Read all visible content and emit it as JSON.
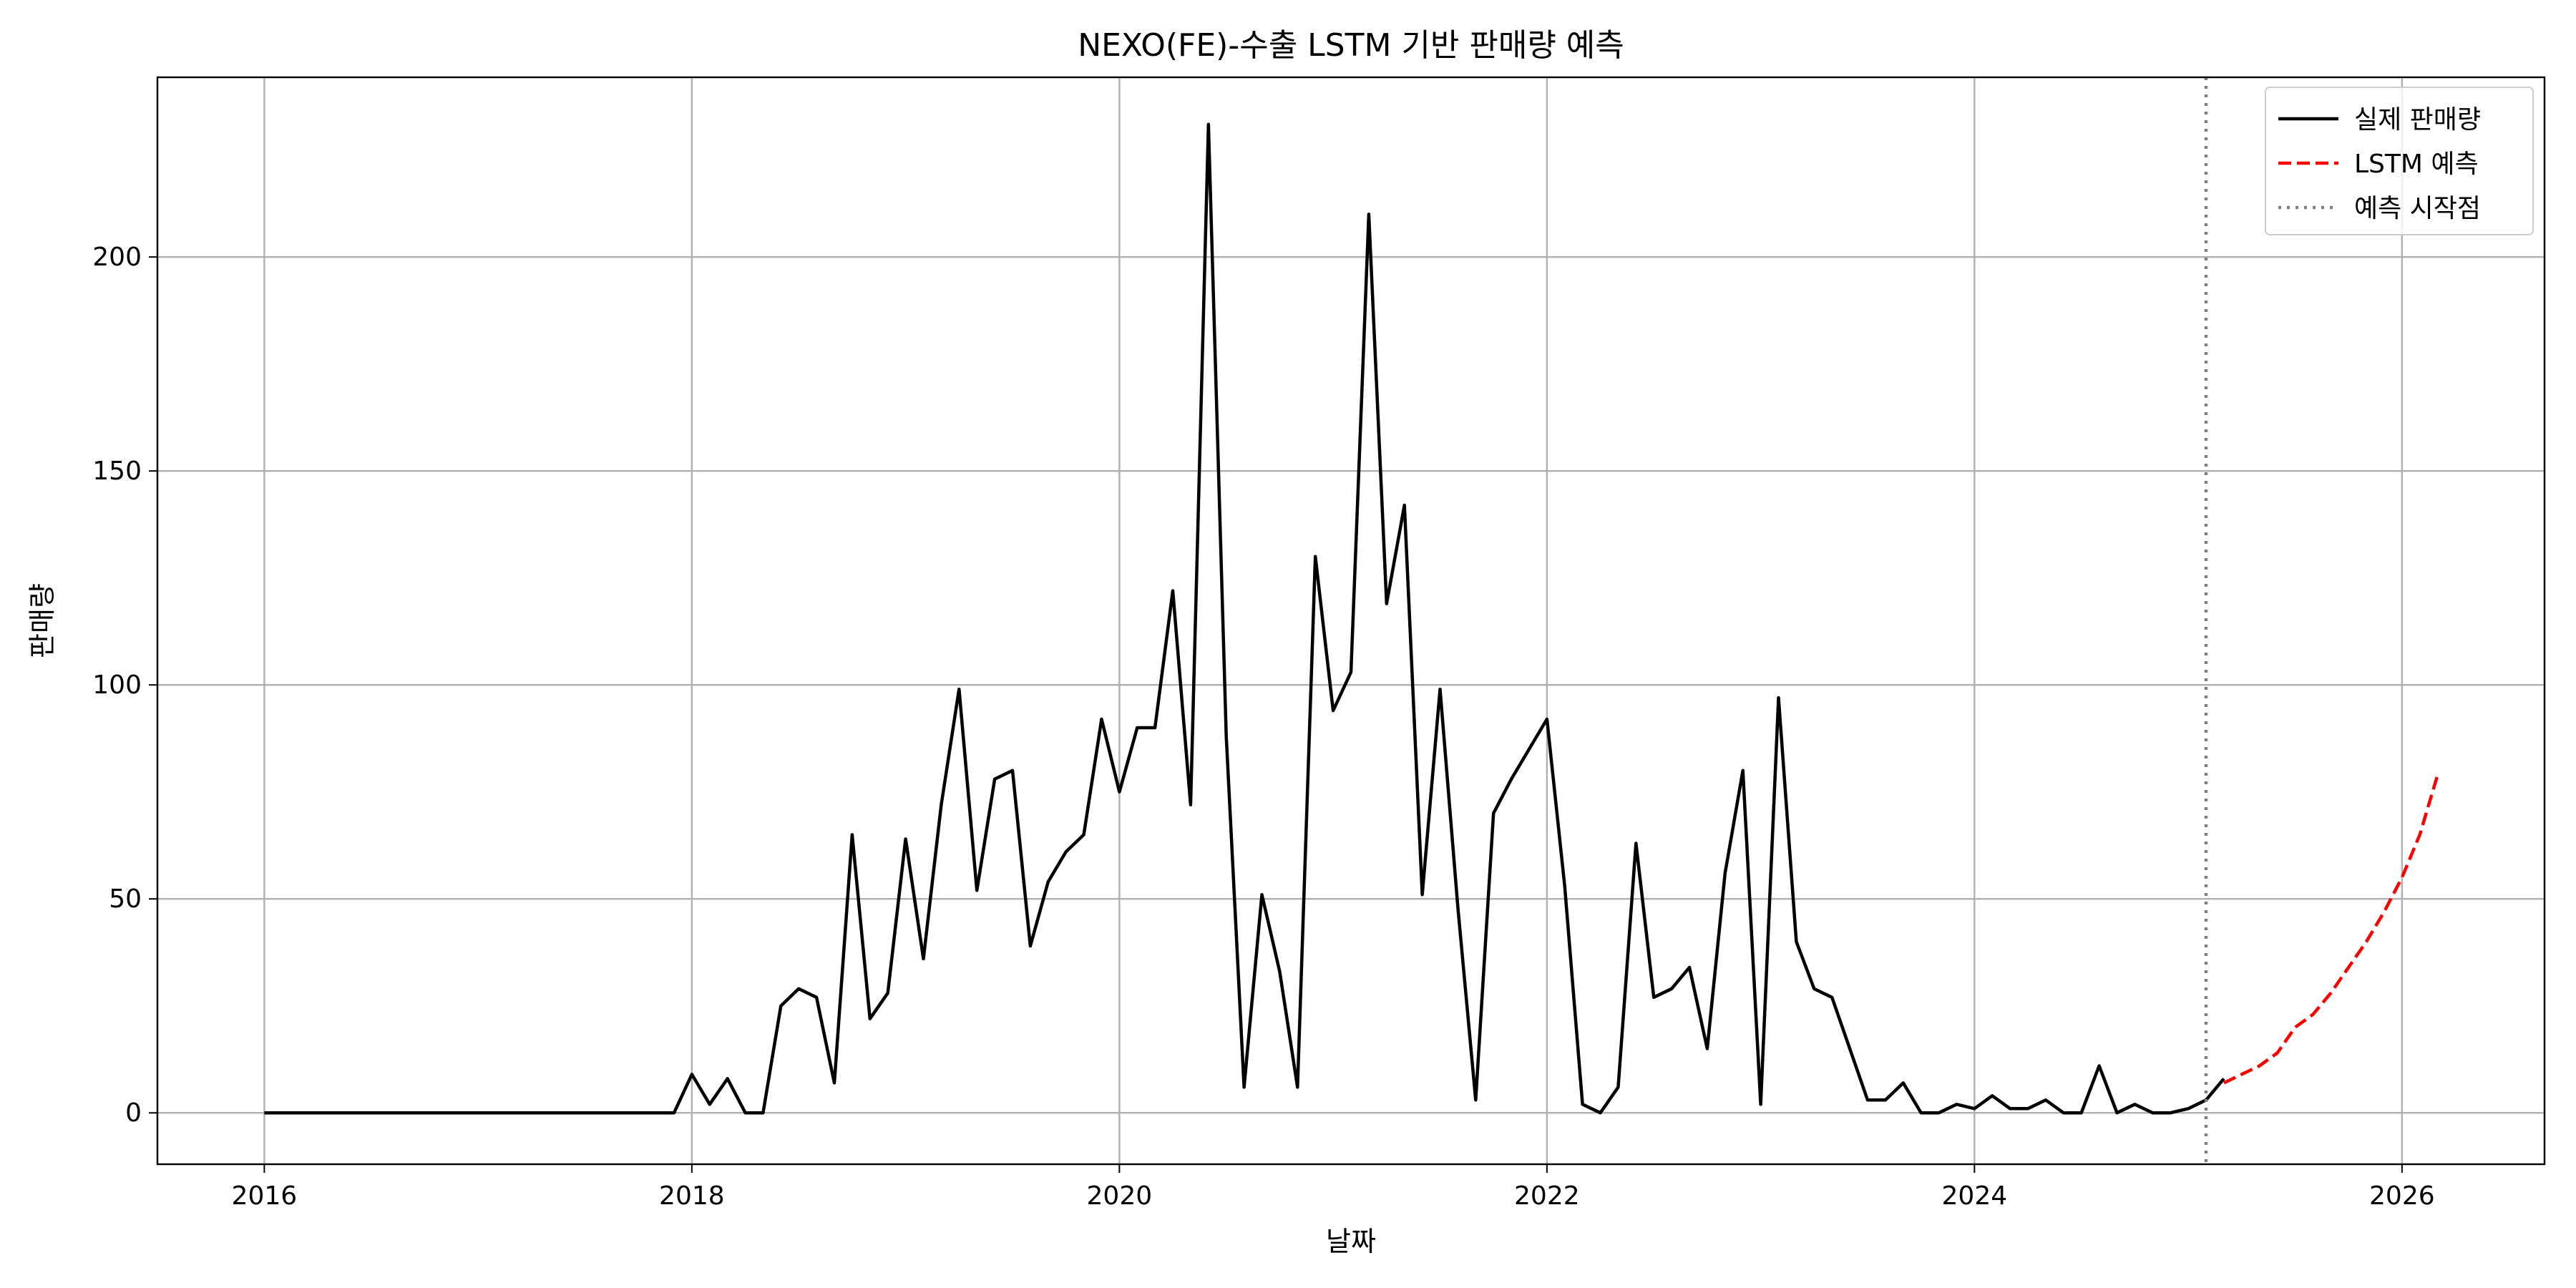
{
  "chart_data": {
    "type": "line",
    "title": "NEXO(FE)-수출 LSTM 기반 판매량 예측",
    "xlabel": "날짜",
    "ylabel": "판매량",
    "xlim": [
      "2015-07",
      "2026-09"
    ],
    "ylim": [
      -12,
      242
    ],
    "x_ticks": [
      "2016",
      "2018",
      "2020",
      "2022",
      "2024",
      "2026"
    ],
    "y_ticks": [
      0,
      50,
      100,
      150,
      200
    ],
    "grid": true,
    "legend_position": "top-right",
    "series": [
      {
        "name": "실제 판매량",
        "color": "#000000",
        "style": "solid",
        "start": "2016-01",
        "frequency": "monthly",
        "values": [
          0,
          0,
          0,
          0,
          0,
          0,
          0,
          0,
          0,
          0,
          0,
          0,
          0,
          0,
          0,
          0,
          0,
          0,
          0,
          0,
          0,
          0,
          0,
          0,
          9,
          2,
          8,
          0,
          0,
          25,
          29,
          27,
          7,
          65,
          22,
          28,
          64,
          36,
          72,
          99,
          52,
          78,
          80,
          39,
          54,
          61,
          65,
          92,
          75,
          90,
          90,
          122,
          72,
          231,
          88,
          6,
          51,
          33,
          6,
          130,
          94,
          103,
          210,
          119,
          142,
          51,
          99,
          48,
          3,
          70,
          78,
          85,
          92,
          53,
          2,
          0,
          6,
          63,
          27,
          29,
          34,
          15,
          56,
          80,
          2,
          97,
          40,
          29,
          27,
          15,
          3,
          3,
          7,
          0,
          0,
          2,
          1,
          4,
          1,
          1,
          3,
          0,
          0,
          11,
          0,
          2,
          0,
          0,
          1,
          3,
          8
        ]
      },
      {
        "name": "LSTM 예측",
        "color": "#ff0000",
        "style": "dashed",
        "start": "2025-03",
        "frequency": "monthly",
        "values": [
          7,
          9,
          11,
          14,
          20,
          23,
          28,
          34,
          40,
          47,
          55,
          65,
          79
        ]
      }
    ],
    "forecast_start": {
      "name": "예측 시작점",
      "date": "2025-02",
      "color": "#808080",
      "style": "dotted"
    }
  }
}
